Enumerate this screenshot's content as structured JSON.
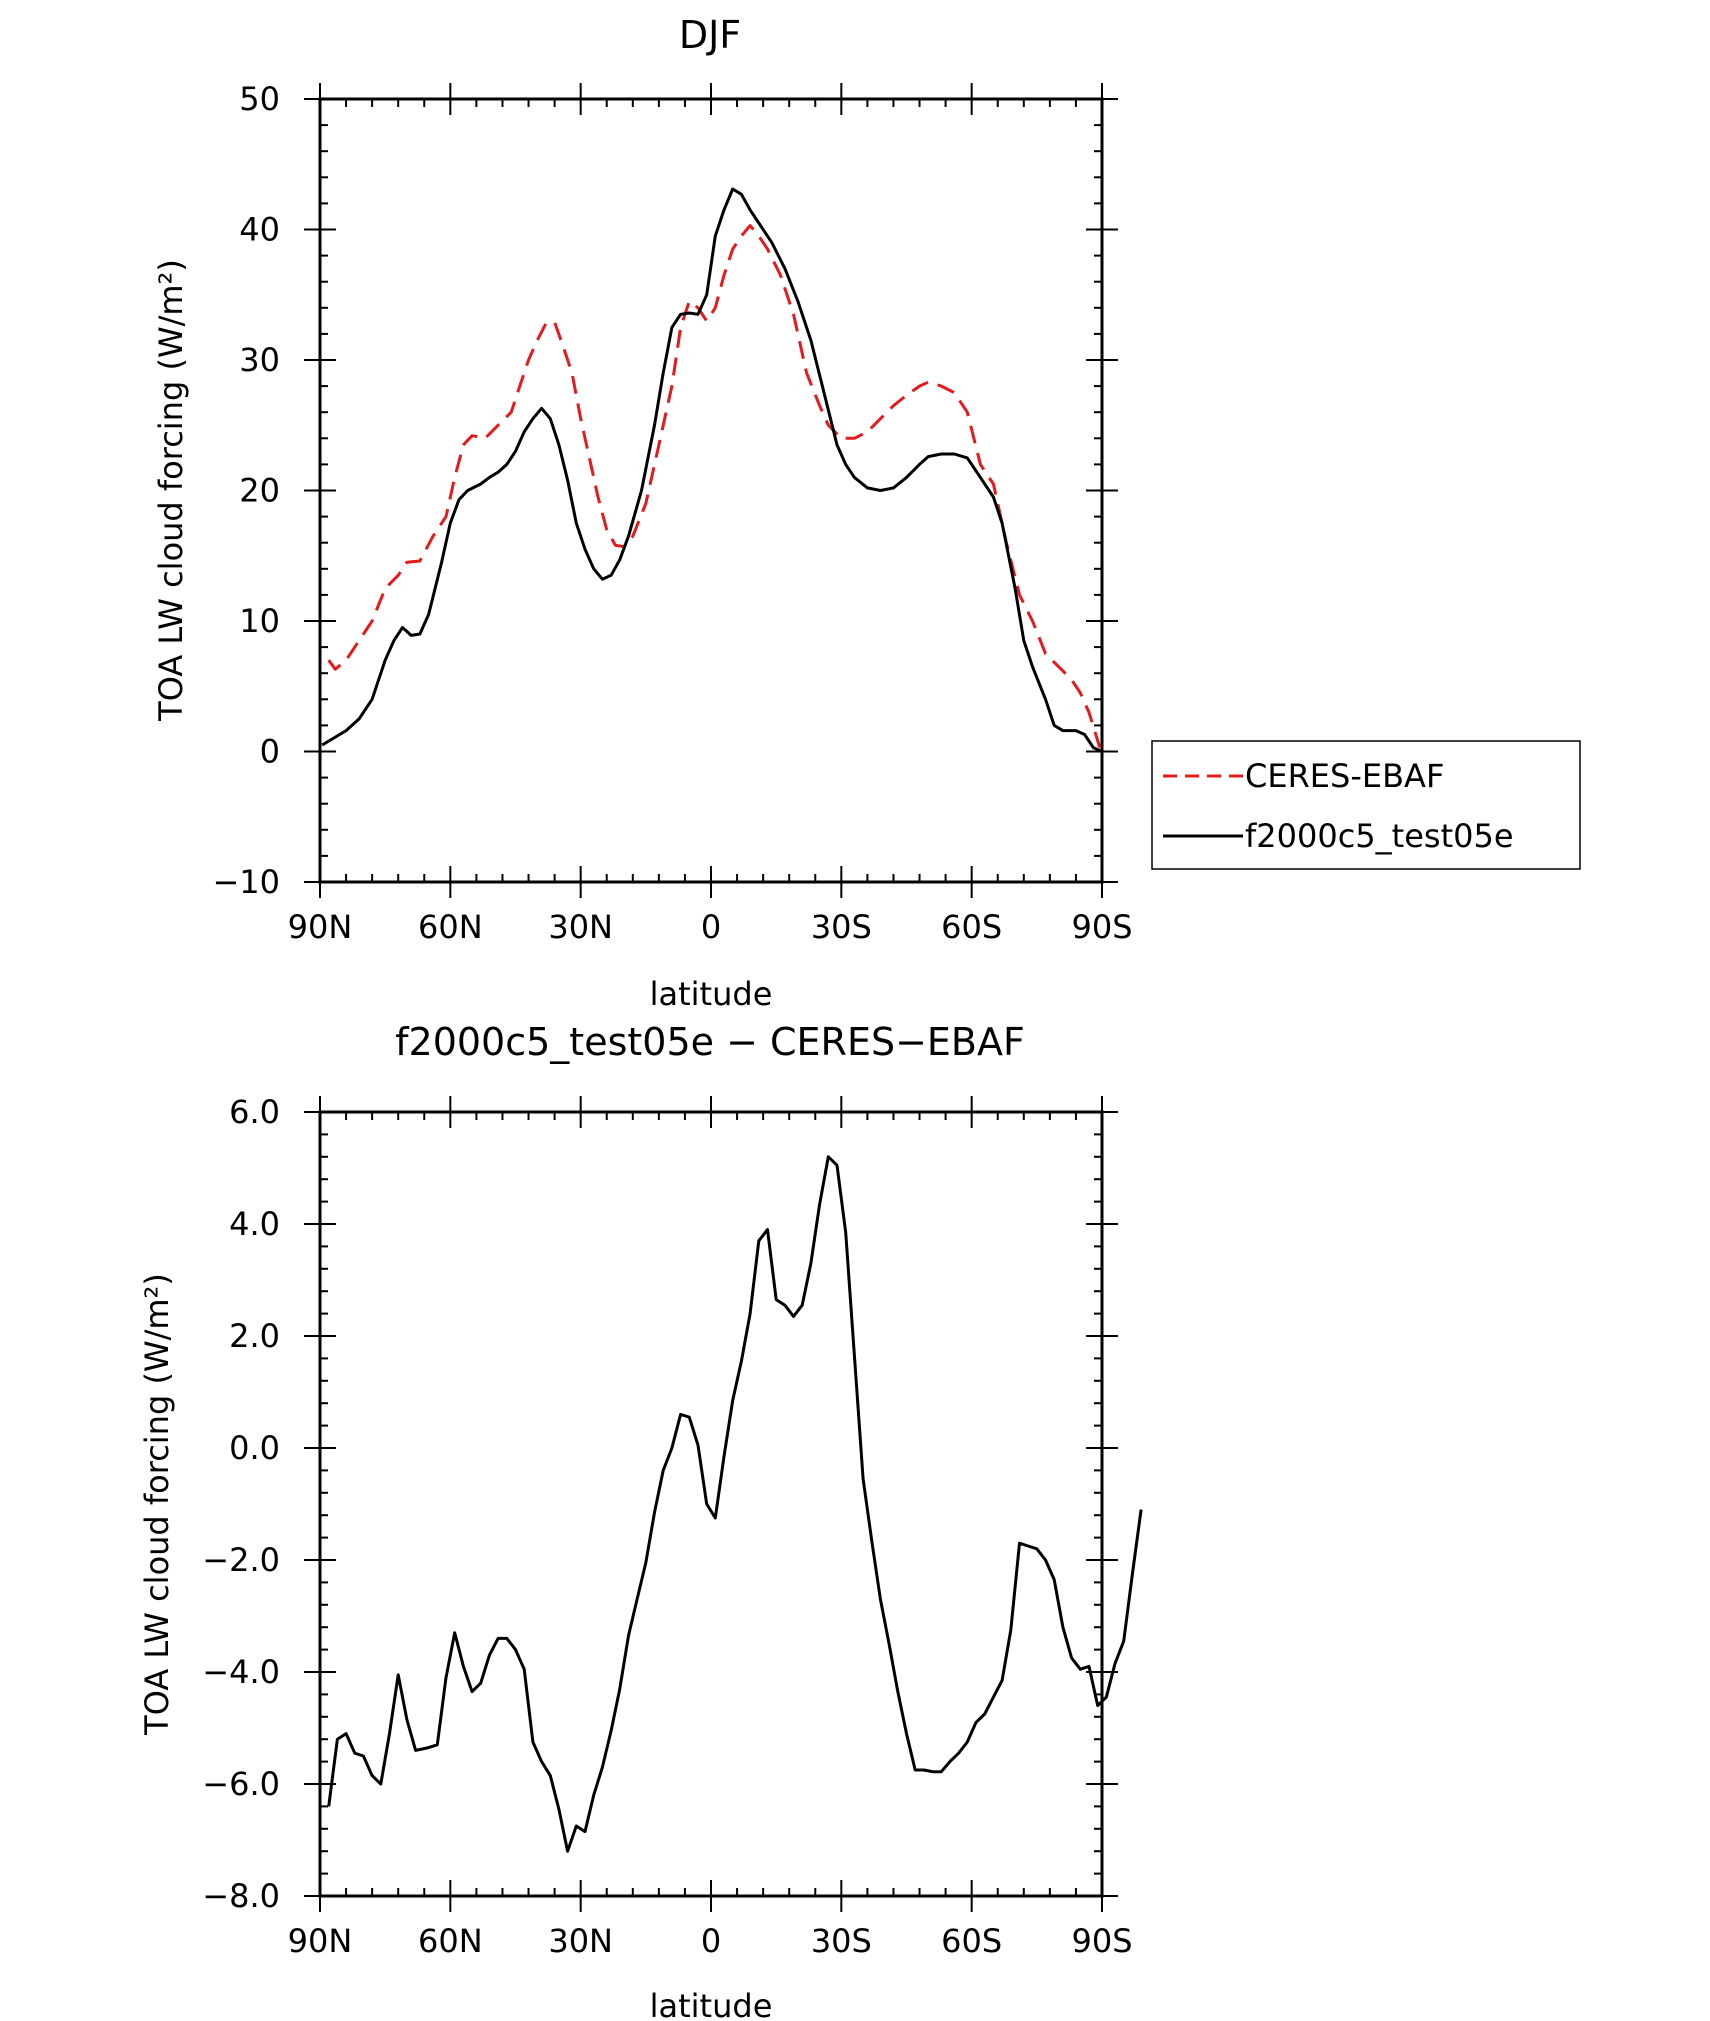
{
  "chart_data": [
    {
      "type": "line",
      "title": "DJF",
      "xlabel": "latitude",
      "ylabel": "TOA LW cloud forcing (W/m²)",
      "xlim": [
        90,
        -90
      ],
      "ylim": [
        -10,
        50
      ],
      "x_tick_values": [
        90,
        60,
        30,
        0,
        -30,
        -60,
        -90
      ],
      "x_tick_labels": [
        "90N",
        "60N",
        "30N",
        "0",
        "30S",
        "60S",
        "90S"
      ],
      "y_tick_values": [
        -10,
        0,
        10,
        20,
        30,
        40,
        50
      ],
      "y_tick_labels": [
        "−10",
        "0",
        "10",
        "20",
        "30",
        "40",
        "50"
      ],
      "grid": false,
      "legend_position": "right-outside",
      "series": [
        {
          "name": "CERES-EBAF",
          "color": "#e41a1c",
          "dash": "dashed",
          "points": [
            [
              88,
              7.0
            ],
            [
              86.5,
              6.3
            ],
            [
              84,
              7.0
            ],
            [
              81,
              8.5
            ],
            [
              78,
              10.0
            ],
            [
              75,
              12.5
            ],
            [
              72,
              13.5
            ],
            [
              70,
              14.5
            ],
            [
              67,
              14.6
            ],
            [
              64,
              16.5
            ],
            [
              61,
              18.0
            ],
            [
              59,
              21.0
            ],
            [
              57,
              23.5
            ],
            [
              55,
              24.2
            ],
            [
              52,
              24.0
            ],
            [
              49,
              25.0
            ],
            [
              46,
              26.0
            ],
            [
              44,
              28.0
            ],
            [
              42,
              30.0
            ],
            [
              40,
              31.5
            ],
            [
              38,
              32.8
            ],
            [
              36,
              32.9
            ],
            [
              34,
              31.0
            ],
            [
              32,
              29.0
            ],
            [
              30,
              25.5
            ],
            [
              28,
              22.5
            ],
            [
              26,
              19.5
            ],
            [
              24,
              17.0
            ],
            [
              22,
              15.8
            ],
            [
              20,
              15.7
            ],
            [
              18,
              16.5
            ],
            [
              15,
              19.0
            ],
            [
              12,
              23.5
            ],
            [
              9,
              28.0
            ],
            [
              7,
              32.5
            ],
            [
              5,
              34.5
            ],
            [
              3,
              34.0
            ],
            [
              1,
              33.0
            ],
            [
              -1,
              34.0
            ],
            [
              -3,
              36.5
            ],
            [
              -5,
              38.5
            ],
            [
              -7,
              39.5
            ],
            [
              -9,
              40.3
            ],
            [
              -11,
              39.5
            ],
            [
              -13,
              38.5
            ],
            [
              -16,
              36.5
            ],
            [
              -19,
              33.5
            ],
            [
              -22,
              29.0
            ],
            [
              -25,
              26.5
            ],
            [
              -27,
              25.0
            ],
            [
              -30,
              24.0
            ],
            [
              -33,
              24.0
            ],
            [
              -36,
              24.5
            ],
            [
              -39,
              25.5
            ],
            [
              -42,
              26.5
            ],
            [
              -45,
              27.3
            ],
            [
              -48,
              28.0
            ],
            [
              -50,
              28.3
            ],
            [
              -53,
              28.0
            ],
            [
              -56,
              27.5
            ],
            [
              -59,
              26.0
            ],
            [
              -62,
              22.0
            ],
            [
              -65,
              20.5
            ],
            [
              -68,
              16.0
            ],
            [
              -71,
              12.0
            ],
            [
              -74,
              10.0
            ],
            [
              -77,
              7.5
            ],
            [
              -80,
              6.5
            ],
            [
              -83,
              5.5
            ],
            [
              -85,
              4.5
            ],
            [
              -87,
              3.0
            ],
            [
              -89.5,
              0.3
            ]
          ]
        },
        {
          "name": "f2000c5_test05e",
          "color": "#000000",
          "dash": "solid",
          "points": [
            [
              89.5,
              0.5
            ],
            [
              87,
              1.0
            ],
            [
              84,
              1.6
            ],
            [
              81,
              2.5
            ],
            [
              78,
              4.0
            ],
            [
              75,
              7.0
            ],
            [
              73,
              8.5
            ],
            [
              71,
              9.5
            ],
            [
              69,
              8.9
            ],
            [
              67,
              9.0
            ],
            [
              65,
              10.5
            ],
            [
              62,
              14.5
            ],
            [
              60,
              17.5
            ],
            [
              58,
              19.3
            ],
            [
              56,
              20.0
            ],
            [
              53,
              20.5
            ],
            [
              51,
              21.0
            ],
            [
              49,
              21.4
            ],
            [
              47,
              22.0
            ],
            [
              45,
              23.0
            ],
            [
              43,
              24.5
            ],
            [
              41,
              25.5
            ],
            [
              39,
              26.3
            ],
            [
              37,
              25.5
            ],
            [
              35,
              23.5
            ],
            [
              33,
              20.8
            ],
            [
              31,
              17.5
            ],
            [
              29,
              15.5
            ],
            [
              27,
              14.0
            ],
            [
              25,
              13.2
            ],
            [
              23,
              13.5
            ],
            [
              21,
              14.7
            ],
            [
              19,
              16.5
            ],
            [
              16,
              20.0
            ],
            [
              13,
              25.0
            ],
            [
              11,
              29.0
            ],
            [
              9,
              32.5
            ],
            [
              7,
              33.5
            ],
            [
              5,
              33.6
            ],
            [
              3,
              33.5
            ],
            [
              1,
              35.0
            ],
            [
              -1,
              39.5
            ],
            [
              -3,
              41.5
            ],
            [
              -5,
              43.1
            ],
            [
              -7,
              42.7
            ],
            [
              -9,
              41.5
            ],
            [
              -11,
              40.5
            ],
            [
              -14,
              39.0
            ],
            [
              -17,
              37.0
            ],
            [
              -20,
              34.5
            ],
            [
              -23,
              31.5
            ],
            [
              -26,
              27.5
            ],
            [
              -29,
              23.5
            ],
            [
              -31,
              22.0
            ],
            [
              -33,
              21.0
            ],
            [
              -36,
              20.2
            ],
            [
              -39,
              20.0
            ],
            [
              -42,
              20.2
            ],
            [
              -45,
              21.0
            ],
            [
              -48,
              22.0
            ],
            [
              -50,
              22.6
            ],
            [
              -53,
              22.8
            ],
            [
              -56,
              22.8
            ],
            [
              -59,
              22.5
            ],
            [
              -62,
              21.0
            ],
            [
              -65,
              19.5
            ],
            [
              -67,
              17.5
            ],
            [
              -70,
              12.5
            ],
            [
              -72,
              8.5
            ],
            [
              -74,
              6.5
            ],
            [
              -77,
              4.0
            ],
            [
              -79,
              2.0
            ],
            [
              -81,
              1.6
            ],
            [
              -84,
              1.6
            ],
            [
              -86,
              1.3
            ],
            [
              -88,
              0.3
            ],
            [
              -90,
              0.0
            ]
          ]
        }
      ]
    },
    {
      "type": "line",
      "title": "f2000c5_test05e − CERES−EBAF",
      "xlabel": "latitude",
      "ylabel": "TOA LW cloud forcing (W/m²)",
      "xlim": [
        90,
        -90
      ],
      "ylim": [
        -8,
        6
      ],
      "x_tick_values": [
        90,
        60,
        30,
        0,
        -30,
        -60,
        -90
      ],
      "x_tick_labels": [
        "90N",
        "60N",
        "30N",
        "0",
        "30S",
        "60S",
        "90S"
      ],
      "y_tick_values": [
        -8,
        -6,
        -4,
        -2,
        0,
        2,
        4,
        6
      ],
      "y_tick_labels": [
        "−8.0",
        "−6.0",
        "−4.0",
        "−2.0",
        "0.0",
        "2.0",
        "4.0",
        "6.0"
      ],
      "grid": false,
      "series": [
        {
          "color": "#000000",
          "dash": "solid",
          "points": [
            [
              88,
              -6.4
            ],
            [
              86,
              -5.2
            ],
            [
              84,
              -5.1
            ],
            [
              82,
              -5.45
            ],
            [
              80,
              -5.5
            ],
            [
              78,
              -5.85
            ],
            [
              76,
              -6.0
            ],
            [
              74,
              -5.1
            ],
            [
              72,
              -4.05
            ],
            [
              70,
              -4.85
            ],
            [
              68,
              -5.4
            ],
            [
              65,
              -5.35
            ],
            [
              63,
              -5.3
            ],
            [
              61,
              -4.1
            ],
            [
              59,
              -3.3
            ],
            [
              57,
              -3.9
            ],
            [
              55,
              -4.35
            ],
            [
              53,
              -4.2
            ],
            [
              51,
              -3.7
            ],
            [
              49,
              -3.4
            ],
            [
              47,
              -3.4
            ],
            [
              45,
              -3.6
            ],
            [
              43,
              -3.95
            ],
            [
              41,
              -5.25
            ],
            [
              39,
              -5.6
            ],
            [
              37,
              -5.85
            ],
            [
              35,
              -6.45
            ],
            [
              33,
              -7.2
            ],
            [
              31,
              -6.75
            ],
            [
              29,
              -6.85
            ],
            [
              27,
              -6.2
            ],
            [
              25,
              -5.7
            ],
            [
              23,
              -5.05
            ],
            [
              21,
              -4.3
            ],
            [
              19,
              -3.35
            ],
            [
              17,
              -2.7
            ],
            [
              15,
              -2.05
            ],
            [
              13,
              -1.15
            ],
            [
              11,
              -0.4
            ],
            [
              9,
              0.0
            ],
            [
              7,
              0.6
            ],
            [
              5,
              0.55
            ],
            [
              3,
              0.05
            ],
            [
              1,
              -1.0
            ],
            [
              -1,
              -1.25
            ],
            [
              -3,
              -0.15
            ],
            [
              -5,
              0.85
            ],
            [
              -7,
              1.55
            ],
            [
              -9,
              2.4
            ],
            [
              -11,
              3.7
            ],
            [
              -13,
              3.9
            ],
            [
              -15,
              2.65
            ],
            [
              -17,
              2.55
            ],
            [
              -19,
              2.35
            ],
            [
              -21,
              2.55
            ],
            [
              -23,
              3.3
            ],
            [
              -25,
              4.35
            ],
            [
              -27,
              5.2
            ],
            [
              -29,
              5.05
            ],
            [
              -31,
              3.85
            ],
            [
              -33,
              1.65
            ],
            [
              -35,
              -0.55
            ],
            [
              -37,
              -1.65
            ],
            [
              -39,
              -2.7
            ],
            [
              -41,
              -3.5
            ],
            [
              -43,
              -4.35
            ],
            [
              -45,
              -5.1
            ],
            [
              -47,
              -5.75
            ],
            [
              -49,
              -5.75
            ],
            [
              -51,
              -5.78
            ],
            [
              -53,
              -5.78
            ],
            [
              -55,
              -5.6
            ],
            [
              -57,
              -5.45
            ],
            [
              -59,
              -5.25
            ],
            [
              -61,
              -4.9
            ],
            [
              -63,
              -4.75
            ],
            [
              -65,
              -4.45
            ],
            [
              -67,
              -4.15
            ],
            [
              -69,
              -3.25
            ],
            [
              -71,
              -1.7
            ],
            [
              -73,
              -1.75
            ],
            [
              -75,
              -1.8
            ],
            [
              -77,
              -2.0
            ],
            [
              -79,
              -2.35
            ],
            [
              -81,
              -3.2
            ],
            [
              -83,
              -3.75
            ],
            [
              -85,
              -3.95
            ],
            [
              -87,
              -3.9
            ],
            [
              -89,
              -4.6
            ],
            [
              -91,
              -4.45
            ],
            [
              -93,
              -3.85
            ],
            [
              -95,
              -3.45
            ],
            [
              -97,
              -2.25
            ],
            [
              -99,
              -1.1
            ]
          ]
        }
      ]
    }
  ]
}
